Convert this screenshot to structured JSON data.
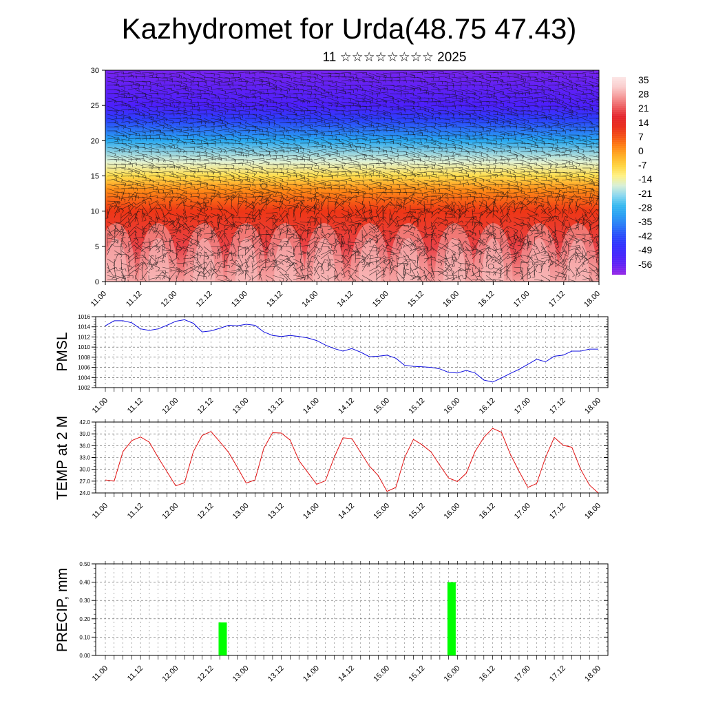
{
  "title": "Kazhydromet for Urda(48.75 47.43)",
  "subtitle": "11 ☆☆☆☆☆☆☆☆ 2025",
  "x_tick_labels": [
    "11.00",
    "11.12",
    "12.00",
    "12.12",
    "13.00",
    "13.12",
    "14.00",
    "14.12",
    "15.00",
    "15.12",
    "16.00",
    "16.12",
    "17.00",
    "17.12",
    "18.00"
  ],
  "chart_data": [
    {
      "type": "heatmap",
      "title": "",
      "ylim": [
        0,
        30
      ],
      "y_ticks": [
        0,
        5,
        10,
        15,
        20,
        25,
        30
      ],
      "colorbar_labels": [
        "35",
        "28",
        "21",
        "14",
        "7",
        "0",
        "-7",
        "-14",
        "-21",
        "-28",
        "-35",
        "-42",
        "-49",
        "-56"
      ],
      "colorbar_range": [
        -63,
        40
      ],
      "temperature_profile": {
        "heights": [
          0,
          5,
          10,
          13,
          15,
          17,
          20,
          23,
          25,
          28,
          30
        ],
        "temps": [
          30,
          22,
          12,
          3,
          -8,
          -16,
          -30,
          -45,
          -55,
          -58,
          -60
        ]
      },
      "colors": {
        "warm": "#e8202a",
        "hot": "#f4b0b0",
        "yellow": "#ffe060",
        "cyan": "#40b0f0",
        "blue": "#3a28ff",
        "violet": "#9030e0"
      },
      "wind_barbs": true
    },
    {
      "type": "line",
      "ylabel": "PMSL",
      "ylim": [
        1002,
        1016
      ],
      "y_ticks": [
        "1002",
        "1004",
        "1006",
        "1008",
        "1010",
        "1012",
        "1014",
        "1016"
      ],
      "color": "#1010e0",
      "x_hours": [
        0,
        3,
        6,
        9,
        12,
        15,
        18,
        21,
        24,
        27,
        30,
        33,
        36,
        39,
        42,
        45,
        48,
        51,
        54,
        57,
        60,
        63,
        66,
        69,
        72,
        75,
        78,
        81,
        84,
        87,
        90,
        93,
        96,
        99,
        102,
        105,
        108,
        111,
        114,
        117,
        120,
        123,
        126,
        129,
        132,
        135,
        138,
        141,
        144,
        147,
        150,
        153,
        156,
        159,
        162,
        165,
        168
      ],
      "values": [
        1014.2,
        1015.2,
        1015.2,
        1014.8,
        1013.6,
        1013.3,
        1013.6,
        1014.3,
        1015.1,
        1015.4,
        1014.7,
        1013.0,
        1013.2,
        1013.7,
        1014.3,
        1014.2,
        1014.5,
        1014.3,
        1013.0,
        1012.3,
        1012.1,
        1012.3,
        1012.1,
        1011.8,
        1011.3,
        1010.4,
        1009.7,
        1009.2,
        1009.7,
        1009.0,
        1008.1,
        1008.2,
        1008.4,
        1007.8,
        1006.4,
        1006.2,
        1006.1,
        1006.0,
        1005.7,
        1005.0,
        1004.9,
        1005.4,
        1004.9,
        1003.5,
        1003.1,
        1003.9,
        1004.8,
        1005.6,
        1006.6,
        1007.6,
        1007.1,
        1008.2,
        1008.4,
        1009.2,
        1009.2,
        1009.6,
        1009.6
      ]
    },
    {
      "type": "line",
      "ylabel": "TEMP at 2 M",
      "ylim": [
        24,
        42
      ],
      "y_ticks": [
        "24.0",
        "27.0",
        "30.0",
        "33.0",
        "36.0",
        "39.0",
        "42.0"
      ],
      "color": "#e01010",
      "x_hours": [
        0,
        3,
        6,
        9,
        12,
        15,
        18,
        21,
        24,
        27,
        30,
        33,
        36,
        39,
        42,
        45,
        48,
        51,
        54,
        57,
        60,
        63,
        66,
        69,
        72,
        75,
        78,
        81,
        84,
        87,
        90,
        93,
        96,
        99,
        102,
        105,
        108,
        111,
        114,
        117,
        120,
        123,
        126,
        129,
        132,
        135,
        138,
        141,
        144,
        147,
        150,
        153,
        156,
        159,
        162,
        165,
        168
      ],
      "values": [
        27.3,
        27.0,
        34.5,
        37.3,
        38.2,
        36.9,
        33.0,
        29.4,
        25.8,
        26.6,
        34.5,
        38.6,
        39.6,
        37.0,
        34.3,
        30.5,
        26.5,
        27.3,
        35.3,
        39.3,
        39.2,
        37.4,
        32.2,
        29.2,
        26.2,
        27.1,
        33.0,
        38.0,
        37.8,
        34.3,
        30.8,
        28.4,
        24.4,
        25.4,
        33.0,
        37.6,
        36.2,
        34.4,
        31.0,
        27.8,
        26.9,
        29.0,
        34.5,
        38.1,
        40.4,
        39.4,
        33.9,
        29.5,
        25.4,
        26.4,
        33.0,
        38.1,
        36.1,
        35.6,
        30.0,
        26.0,
        24.0
      ]
    },
    {
      "type": "bar",
      "ylabel": "PRECIP, mm",
      "ylim": [
        0,
        0.5
      ],
      "y_ticks": [
        "0.00",
        "0.10",
        "0.20",
        "0.30",
        "0.40",
        "0.50"
      ],
      "color": "#00ff00",
      "bars": [
        {
          "x_hours": 40,
          "value": 0.18
        },
        {
          "x_hours": 118,
          "value": 0.4
        }
      ]
    }
  ]
}
